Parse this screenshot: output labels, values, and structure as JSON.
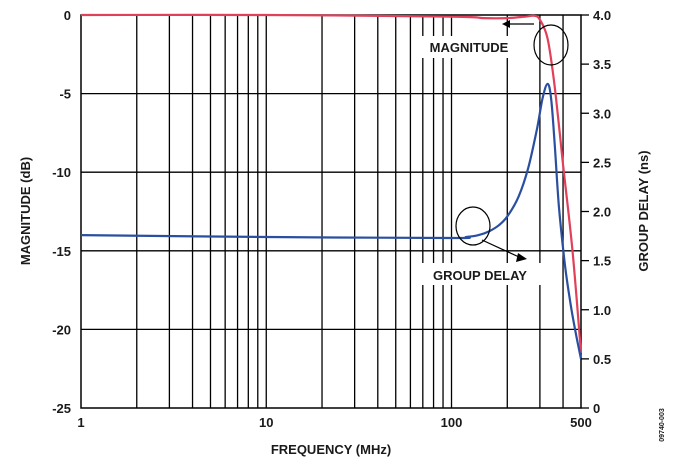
{
  "chart_data": {
    "type": "line",
    "xlabel": "FREQUENCY (MHz)",
    "ylabel_left": "MAGNITUDE (dB)",
    "ylabel_right": "GROUP DELAY (ns)",
    "x_scale": "log",
    "xlim": [
      1,
      500
    ],
    "ylim_left": [
      -25,
      0
    ],
    "ylim_right": [
      0,
      4.0
    ],
    "grid": true,
    "x_tick_labels": [
      "1",
      "10",
      "100",
      "500"
    ],
    "y_left_tick_labels": [
      "0",
      "-5",
      "-10",
      "-15",
      "-20",
      "-25"
    ],
    "y_right_tick_labels": [
      "4.0",
      "3.5",
      "3.0",
      "2.5",
      "2.0",
      "1.5",
      "1.0",
      "0.5",
      "0"
    ],
    "series": [
      {
        "name": "MAGNITUDE",
        "axis": "left",
        "color": "#e0405a",
        "x": [
          1,
          10,
          100,
          150,
          200,
          250,
          280,
          300,
          330,
          360,
          400,
          450,
          500
        ],
        "y": [
          0,
          0,
          -0.1,
          -0.2,
          -0.2,
          -0.1,
          -0.05,
          -0.3,
          -1.5,
          -4.5,
          -9.5,
          -15,
          -21.5
        ]
      },
      {
        "name": "GROUP DELAY",
        "axis": "right",
        "color": "#2b4fa0",
        "x": [
          1,
          10,
          100,
          120,
          140,
          160,
          180,
          200,
          230,
          260,
          290,
          310,
          330,
          345,
          360,
          380,
          410,
          440,
          470,
          500
        ],
        "y": [
          1.76,
          1.74,
          1.73,
          1.74,
          1.76,
          1.8,
          1.86,
          1.95,
          2.15,
          2.45,
          2.85,
          3.15,
          3.3,
          3.15,
          2.7,
          2.05,
          1.45,
          1.05,
          0.75,
          0.5
        ]
      }
    ],
    "annotations": [
      "MAGNITUDE",
      "GROUP DELAY"
    ],
    "figure_code": "09740-003"
  }
}
